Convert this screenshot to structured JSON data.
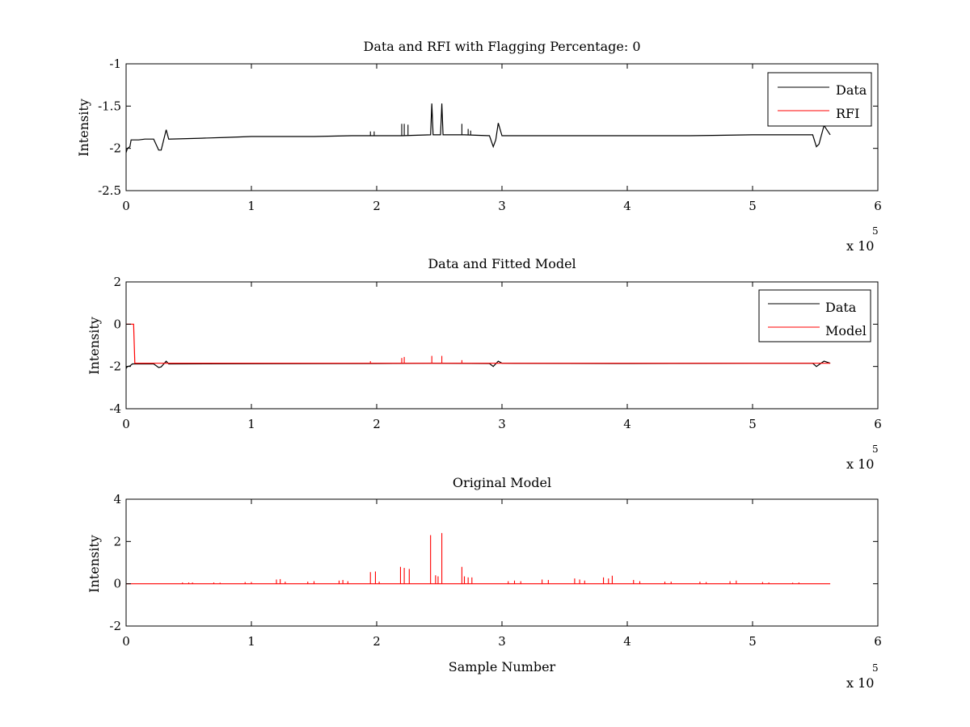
{
  "figure": {
    "background": "#ffffff"
  },
  "chart_data": [
    {
      "type": "line",
      "title": "Data and RFI with Flagging Percentage: 0",
      "xlabel": "",
      "ylabel": "Intensity",
      "xlim": [
        0,
        6
      ],
      "ylim": [
        -2.5,
        -1
      ],
      "x_ticks": [
        "0",
        "1",
        "2",
        "3",
        "4",
        "5",
        "6"
      ],
      "y_ticks": [
        "-2.5",
        "-2",
        "-1.5",
        "-1"
      ],
      "x_multiplier": {
        "base": "x 10",
        "exponent": "5"
      },
      "grid": false,
      "legend": {
        "position": "top-right",
        "entries": [
          {
            "label": "Data",
            "color": "#000000"
          },
          {
            "label": "RFI",
            "color": "#ff0000"
          }
        ]
      },
      "series": [
        {
          "name": "Data",
          "color": "#000000",
          "points": [
            [
              0,
              -2.05
            ],
            [
              0.01,
              -2.0
            ],
            [
              0.03,
              -1.98
            ],
            [
              0.04,
              -1.9
            ],
            [
              0.1,
              -1.9
            ],
            [
              0.15,
              -1.89
            ],
            [
              0.22,
              -1.89
            ],
            [
              0.26,
              -2.02
            ],
            [
              0.28,
              -2.02
            ],
            [
              0.32,
              -1.78
            ],
            [
              0.34,
              -1.89
            ],
            [
              0.6,
              -1.88
            ],
            [
              0.8,
              -1.87
            ],
            [
              1.0,
              -1.86
            ],
            [
              1.2,
              -1.86
            ],
            [
              1.5,
              -1.86
            ],
            [
              1.8,
              -1.85
            ],
            [
              2.0,
              -1.85
            ],
            [
              2.2,
              -1.85
            ],
            [
              2.43,
              -1.84
            ],
            [
              2.44,
              -1.47
            ],
            [
              2.45,
              -1.84
            ],
            [
              2.51,
              -1.84
            ],
            [
              2.52,
              -1.47
            ],
            [
              2.53,
              -1.84
            ],
            [
              2.7,
              -1.84
            ],
            [
              2.9,
              -1.85
            ],
            [
              2.93,
              -1.98
            ],
            [
              2.95,
              -1.9
            ],
            [
              2.97,
              -1.7
            ],
            [
              3.0,
              -1.85
            ],
            [
              3.5,
              -1.85
            ],
            [
              4.0,
              -1.85
            ],
            [
              4.5,
              -1.85
            ],
            [
              5.0,
              -1.84
            ],
            [
              5.4,
              -1.84
            ],
            [
              5.48,
              -1.84
            ],
            [
              5.51,
              -1.98
            ],
            [
              5.53,
              -1.95
            ],
            [
              5.57,
              -1.73
            ],
            [
              5.62,
              -1.84
            ]
          ],
          "spikes": [
            [
              1.95,
              -1.8
            ],
            [
              1.98,
              -1.8
            ],
            [
              2.2,
              -1.71
            ],
            [
              2.22,
              -1.71
            ],
            [
              2.25,
              -1.72
            ],
            [
              2.68,
              -1.71
            ],
            [
              2.73,
              -1.77
            ],
            [
              2.75,
              -1.79
            ]
          ]
        },
        {
          "name": "RFI",
          "color": "#ff0000",
          "points": []
        }
      ]
    },
    {
      "type": "line",
      "title": "Data and Fitted Model",
      "xlabel": "",
      "ylabel": "Intensity",
      "xlim": [
        0,
        6
      ],
      "ylim": [
        -4,
        2
      ],
      "x_ticks": [
        "0",
        "1",
        "2",
        "3",
        "4",
        "5",
        "6"
      ],
      "y_ticks": [
        "-4",
        "-2",
        "0",
        "2"
      ],
      "x_multiplier": {
        "base": "x 10",
        "exponent": "5"
      },
      "grid": false,
      "legend": {
        "position": "top-right",
        "entries": [
          {
            "label": "Data",
            "color": "#000000"
          },
          {
            "label": "Model",
            "color": "#ff0000"
          }
        ]
      },
      "series": [
        {
          "name": "Data",
          "color": "#000000",
          "points": [
            [
              0,
              -2.1
            ],
            [
              0.01,
              -2.0
            ],
            [
              0.03,
              -1.98
            ],
            [
              0.05,
              -1.88
            ],
            [
              0.22,
              -1.88
            ],
            [
              0.26,
              -2.05
            ],
            [
              0.28,
              -2.02
            ],
            [
              0.32,
              -1.75
            ],
            [
              0.34,
              -1.88
            ],
            [
              1.0,
              -1.87
            ],
            [
              2.0,
              -1.86
            ],
            [
              2.43,
              -1.85
            ],
            [
              2.9,
              -1.86
            ],
            [
              2.93,
              -2.0
            ],
            [
              2.97,
              -1.75
            ],
            [
              3.0,
              -1.85
            ],
            [
              4.0,
              -1.86
            ],
            [
              5.0,
              -1.85
            ],
            [
              5.48,
              -1.85
            ],
            [
              5.51,
              -2.0
            ],
            [
              5.57,
              -1.75
            ],
            [
              5.62,
              -1.85
            ]
          ]
        },
        {
          "name": "Model",
          "color": "#ff0000",
          "points": [
            [
              0,
              0.0
            ],
            [
              0.06,
              0.0
            ],
            [
              0.07,
              -1.85
            ],
            [
              2.43,
              -1.85
            ],
            [
              5.62,
              -1.85
            ]
          ],
          "spikes": [
            [
              1.95,
              -1.75
            ],
            [
              2.2,
              -1.6
            ],
            [
              2.22,
              -1.55
            ],
            [
              2.44,
              -1.5
            ],
            [
              2.52,
              -1.5
            ],
            [
              2.68,
              -1.7
            ]
          ]
        }
      ]
    },
    {
      "type": "line",
      "title": "Original Model",
      "xlabel": "Sample Number",
      "ylabel": "Intensity",
      "xlim": [
        0,
        6
      ],
      "ylim": [
        -2,
        4
      ],
      "x_ticks": [
        "0",
        "1",
        "2",
        "3",
        "4",
        "5",
        "6"
      ],
      "y_ticks": [
        "-2",
        "0",
        "2",
        "4"
      ],
      "x_multiplier": {
        "base": "x 10",
        "exponent": "5"
      },
      "grid": false,
      "series": [
        {
          "color": "#ff0000",
          "points": [
            [
              0,
              0.0
            ],
            [
              5.62,
              0.0
            ]
          ],
          "spikes": [
            [
              0.45,
              0.06
            ],
            [
              0.5,
              0.06
            ],
            [
              0.53,
              0.06
            ],
            [
              0.7,
              0.06
            ],
            [
              0.75,
              0.05
            ],
            [
              0.95,
              0.08
            ],
            [
              1.0,
              0.08
            ],
            [
              1.2,
              0.2
            ],
            [
              1.23,
              0.22
            ],
            [
              1.27,
              0.1
            ],
            [
              1.45,
              0.1
            ],
            [
              1.5,
              0.12
            ],
            [
              1.7,
              0.15
            ],
            [
              1.73,
              0.18
            ],
            [
              1.77,
              0.12
            ],
            [
              1.95,
              0.55
            ],
            [
              1.99,
              0.58
            ],
            [
              2.02,
              0.1
            ],
            [
              2.19,
              0.8
            ],
            [
              2.22,
              0.75
            ],
            [
              2.26,
              0.7
            ],
            [
              2.43,
              2.3
            ],
            [
              2.47,
              0.4
            ],
            [
              2.49,
              0.35
            ],
            [
              2.52,
              2.4
            ],
            [
              2.68,
              0.8
            ],
            [
              2.7,
              0.35
            ],
            [
              2.73,
              0.3
            ],
            [
              2.76,
              0.3
            ],
            [
              3.05,
              0.12
            ],
            [
              3.1,
              0.15
            ],
            [
              3.15,
              0.12
            ],
            [
              3.32,
              0.2
            ],
            [
              3.37,
              0.18
            ],
            [
              3.58,
              0.25
            ],
            [
              3.62,
              0.2
            ],
            [
              3.66,
              0.15
            ],
            [
              3.81,
              0.3
            ],
            [
              3.85,
              0.25
            ],
            [
              3.88,
              0.38
            ],
            [
              4.05,
              0.18
            ],
            [
              4.1,
              0.12
            ],
            [
              4.3,
              0.1
            ],
            [
              4.35,
              0.1
            ],
            [
              4.58,
              0.1
            ],
            [
              4.63,
              0.08
            ],
            [
              4.82,
              0.12
            ],
            [
              4.87,
              0.15
            ],
            [
              5.08,
              0.08
            ],
            [
              5.13,
              0.06
            ],
            [
              5.32,
              0.05
            ],
            [
              5.37,
              0.06
            ]
          ]
        }
      ]
    }
  ]
}
